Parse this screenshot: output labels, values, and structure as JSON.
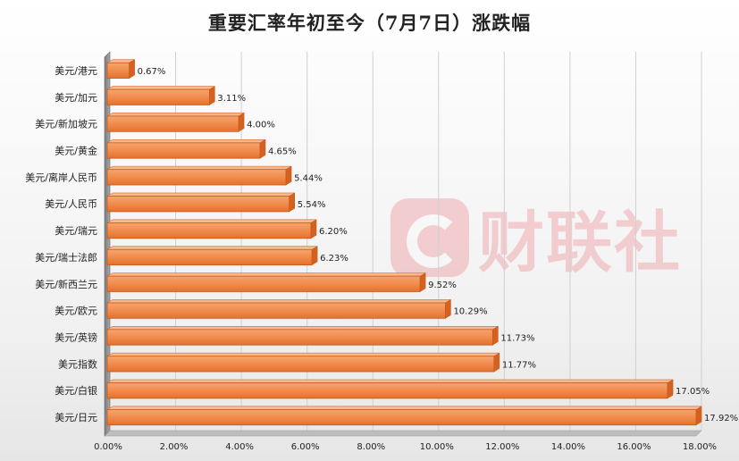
{
  "title": "重要汇率年初至今（7月7日）涨跌幅",
  "watermark": {
    "text": "财联社"
  },
  "chart_data": {
    "type": "bar",
    "orientation": "horizontal",
    "title": "重要汇率年初至今（7月7日）涨跌幅",
    "xlabel": "",
    "ylabel": "",
    "xlim": [
      0,
      18
    ],
    "grid": true,
    "legend": "none",
    "bar_color": "#f0894a",
    "bar_edge_color": "#c9581a",
    "categories": [
      "美元/港元",
      "美元/加元",
      "美元/新加坡元",
      "美元/黄金",
      "美元/离岸人民币",
      "美元/人民币",
      "美元/瑞元",
      "美元/瑞士法郎",
      "美元/新西兰元",
      "美元/欧元",
      "美元/英镑",
      "美元指数",
      "美元/白银",
      "美元/日元"
    ],
    "values": [
      0.67,
      3.11,
      4.0,
      4.65,
      5.44,
      5.54,
      6.2,
      6.23,
      9.52,
      10.29,
      11.73,
      11.77,
      17.05,
      17.92
    ],
    "value_labels": [
      "0.67%",
      "3.11%",
      "4.00%",
      "4.65%",
      "5.44%",
      "5.54%",
      "6.20%",
      "6.23%",
      "9.52%",
      "10.29%",
      "11.73%",
      "11.77%",
      "17.05%",
      "17.92%"
    ],
    "ticks": [
      "0.00%",
      "2.00%",
      "4.00%",
      "6.00%",
      "8.00%",
      "10.00%",
      "12.00%",
      "14.00%",
      "16.00%",
      "18.00%"
    ]
  }
}
